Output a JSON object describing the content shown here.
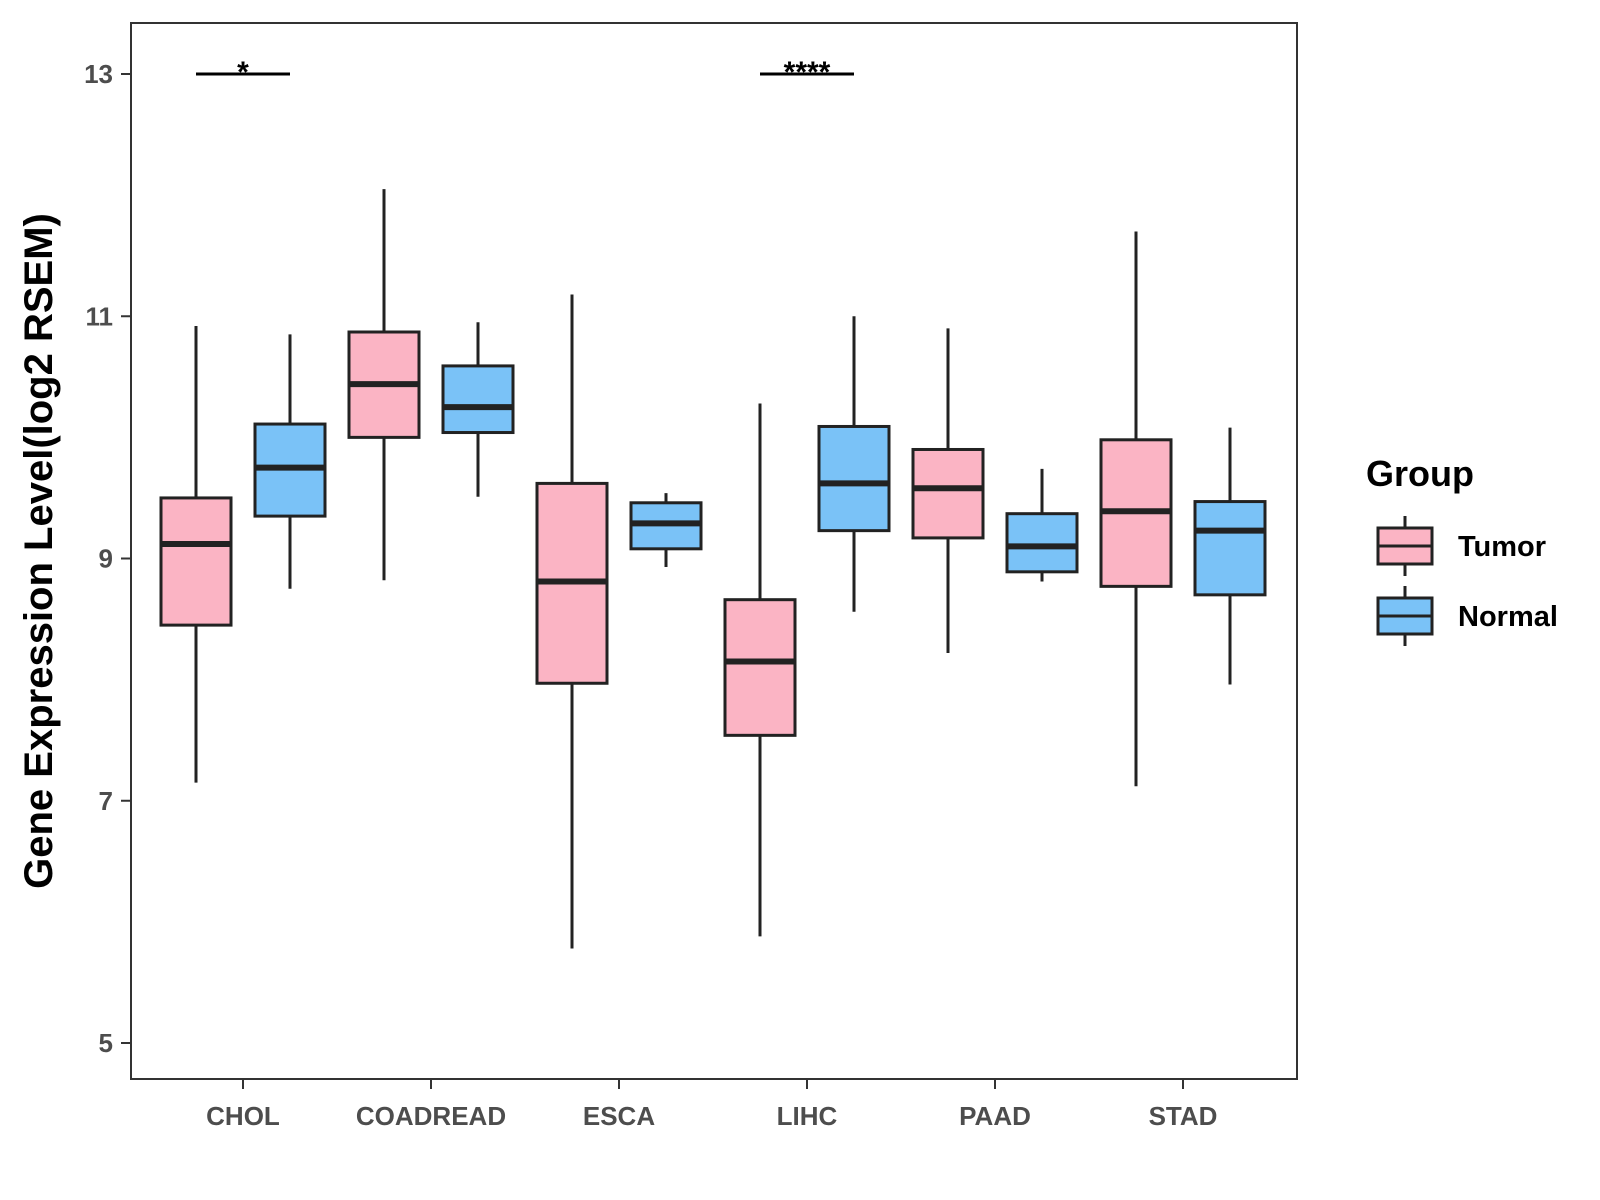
{
  "chart_data": {
    "type": "boxplot",
    "title": "",
    "xlabel": "",
    "ylabel": "Gene Expression Level(log2 RSEM)",
    "ylim": [
      4.7,
      13.4
    ],
    "yticks": [
      5,
      7,
      9,
      11,
      13
    ],
    "grid": false,
    "categories": [
      "CHOL",
      "COADREAD",
      "ESCA",
      "LIHC",
      "PAAD",
      "STAD"
    ],
    "legend": {
      "title": "Group",
      "position": "right",
      "items": [
        {
          "name": "Tumor",
          "color": "#fbb4c4"
        },
        {
          "name": "Normal",
          "color": "#7ac2f7"
        }
      ]
    },
    "series": [
      {
        "name": "Tumor",
        "color": "#fbb4c4",
        "boxes": [
          {
            "min": 7.15,
            "q1": 8.45,
            "median": 9.12,
            "q3": 9.5,
            "max": 10.92
          },
          {
            "min": 8.82,
            "q1": 10.0,
            "median": 10.44,
            "q3": 10.87,
            "max": 12.05
          },
          {
            "min": 5.78,
            "q1": 7.97,
            "median": 8.81,
            "q3": 9.62,
            "max": 11.18
          },
          {
            "min": 5.88,
            "q1": 7.54,
            "median": 8.15,
            "q3": 8.66,
            "max": 10.28
          },
          {
            "min": 8.22,
            "q1": 9.17,
            "median": 9.58,
            "q3": 9.9,
            "max": 10.9
          },
          {
            "min": 7.12,
            "q1": 8.77,
            "median": 9.39,
            "q3": 9.98,
            "max": 11.7
          }
        ]
      },
      {
        "name": "Normal",
        "color": "#7ac2f7",
        "boxes": [
          {
            "min": 8.75,
            "q1": 9.35,
            "median": 9.75,
            "q3": 10.11,
            "max": 10.85
          },
          {
            "min": 9.51,
            "q1": 10.04,
            "median": 10.25,
            "q3": 10.59,
            "max": 10.95
          },
          {
            "min": 8.93,
            "q1": 9.08,
            "median": 9.29,
            "q3": 9.46,
            "max": 9.54
          },
          {
            "min": 8.56,
            "q1": 9.23,
            "median": 9.62,
            "q3": 10.09,
            "max": 11.0
          },
          {
            "min": 8.81,
            "q1": 8.89,
            "median": 9.1,
            "q3": 9.37,
            "max": 9.74
          },
          {
            "min": 7.96,
            "q1": 8.7,
            "median": 9.23,
            "q3": 9.47,
            "max": 10.08
          }
        ]
      }
    ],
    "annotations": [
      {
        "category": "CHOL",
        "text": "*",
        "y": 13.0
      },
      {
        "category": "LIHC",
        "text": "****",
        "y": 13.0
      }
    ]
  }
}
